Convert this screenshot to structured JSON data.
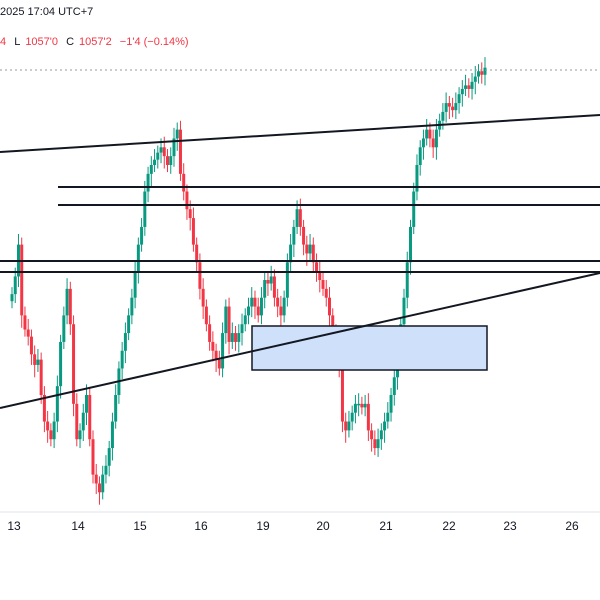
{
  "header": {
    "datetime_text": "2025 17:04 UTC+7"
  },
  "ohlc": {
    "open_tail": "4",
    "low_label": "L",
    "low_value": "1057'0",
    "close_label": "C",
    "close_value": "1057'2",
    "change": "−1'4 (−0.14%)"
  },
  "colors": {
    "up": "#089981",
    "down": "#f23645",
    "line": "#131722",
    "zone_fill": "#cfe0fb",
    "axis_text": "#131722"
  },
  "chart_data": {
    "type": "candlestick",
    "x_tick_labels": [
      "13",
      "14",
      "15",
      "16",
      "19",
      "20",
      "21",
      "22",
      "23",
      "26"
    ],
    "y_axis_visible": false,
    "grid": false,
    "price_close_series": [
      272,
      282,
      300,
      260,
      252,
      248,
      238,
      232,
      235,
      215,
      200,
      195,
      190,
      200,
      220,
      245,
      260,
      275,
      255,
      210,
      190,
      195,
      205,
      215,
      190,
      170,
      165,
      160,
      170,
      175,
      185,
      200,
      215,
      230,
      240,
      250,
      260,
      270,
      285,
      300,
      310,
      330,
      340,
      345,
      348,
      352,
      355,
      350,
      345,
      350,
      360,
      365,
      340,
      330,
      320,
      315,
      300,
      290,
      275,
      265,
      255,
      245,
      240,
      235,
      230,
      250,
      265,
      245,
      250,
      245,
      250,
      255,
      260,
      265,
      270,
      265,
      260,
      270,
      280,
      278,
      282,
      270,
      265,
      260,
      270,
      290,
      300,
      310,
      320,
      310,
      300,
      295,
      300,
      290,
      285,
      280,
      275,
      270,
      260,
      250,
      240,
      230,
      200,
      195,
      200,
      205,
      210,
      210,
      208,
      210,
      195,
      190,
      185,
      190,
      195,
      200,
      205,
      215,
      225,
      240,
      255,
      270,
      290,
      310,
      330,
      345,
      355,
      360,
      365,
      360,
      355,
      365,
      370,
      375,
      380,
      378,
      376,
      380,
      385,
      388,
      390,
      388,
      392,
      395,
      398,
      396,
      400
    ],
    "annotations": [
      {
        "type": "trendline",
        "name": "upper-rising-trendline"
      },
      {
        "type": "trendline",
        "name": "lower-rising-trendline"
      },
      {
        "type": "hline",
        "name": "resistance-line-1"
      },
      {
        "type": "hline",
        "name": "resistance-line-2"
      },
      {
        "type": "hline",
        "name": "support-line-1"
      },
      {
        "type": "hline",
        "name": "support-line-2"
      },
      {
        "type": "zone",
        "name": "demand-zone-box"
      },
      {
        "type": "dotted-hline",
        "name": "last-price-line"
      }
    ]
  }
}
